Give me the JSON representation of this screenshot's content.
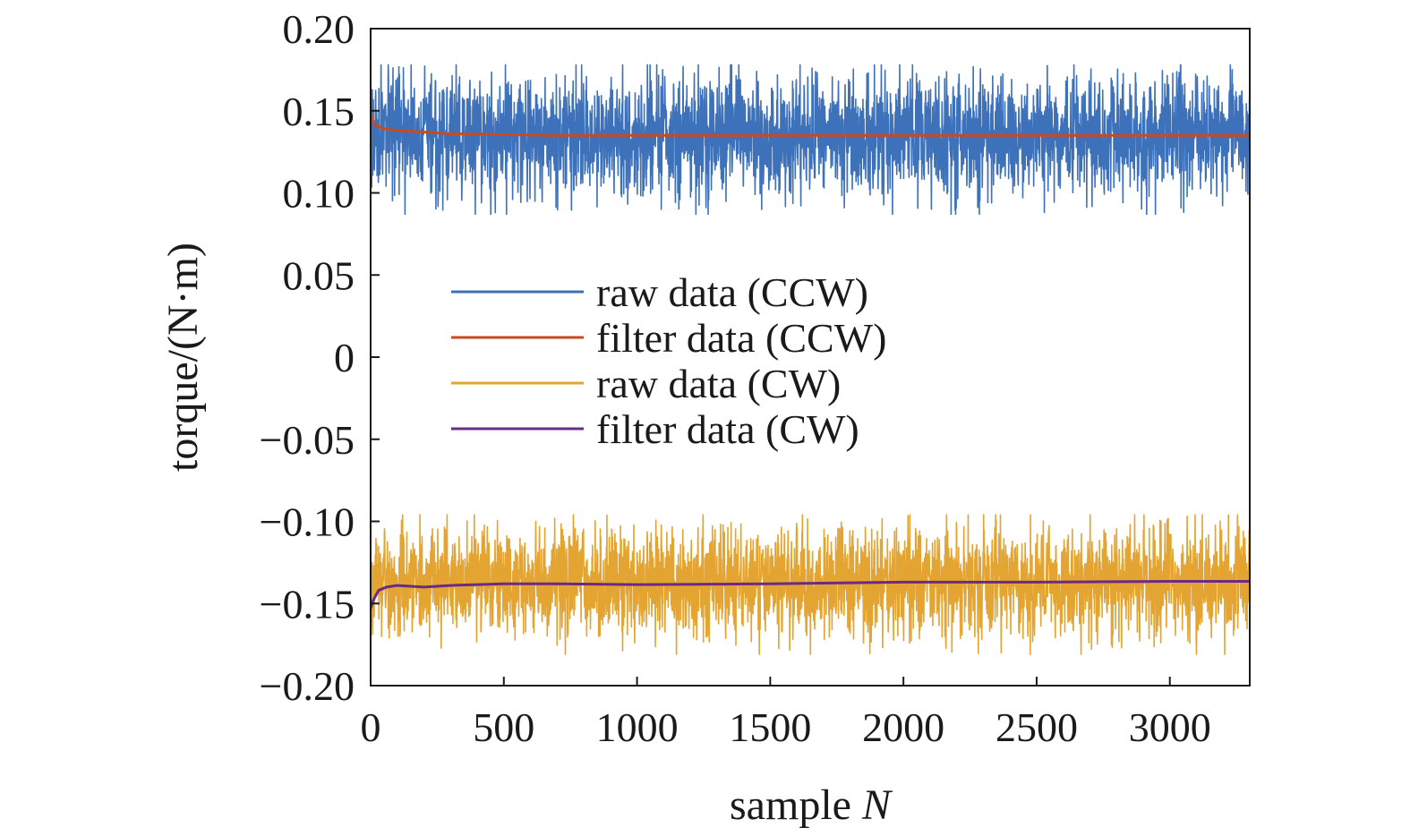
{
  "chart_data": {
    "type": "line",
    "xlabel": "sample",
    "xlabel_var": "N",
    "ylabel": "torque/(N·m)",
    "xlim": [
      0,
      3300
    ],
    "ylim": [
      -0.2,
      0.2
    ],
    "x_ticks": [
      "0",
      "500",
      "1000",
      "1500",
      "2000",
      "2500",
      "3000"
    ],
    "x_tick_values": [
      0,
      500,
      1000,
      1500,
      2000,
      2500,
      3000
    ],
    "y_ticks": [
      "0.20",
      "0.15",
      "0.10",
      "0.05",
      "0",
      "−0.05",
      "−0.10",
      "−0.15",
      "−0.20"
    ],
    "y_tick_values": [
      0.2,
      0.15,
      0.1,
      0.05,
      0,
      -0.05,
      -0.1,
      -0.15,
      -0.2
    ],
    "grid": false,
    "legend_position": "center-left",
    "series": [
      {
        "name": "raw data (CCW)",
        "color": "#3d71ba",
        "kind": "noisy",
        "n_samples": 3300,
        "mean": 0.135,
        "min": 0.087,
        "max": 0.178
      },
      {
        "name": "filter data (CCW)",
        "color": "#c84b1f",
        "kind": "smooth",
        "x": [
          0,
          10,
          20,
          50,
          100,
          200,
          300,
          500,
          700,
          1000,
          1500,
          2000,
          2500,
          3000,
          3300
        ],
        "y": [
          0.15,
          0.143,
          0.141,
          0.139,
          0.138,
          0.137,
          0.136,
          0.1355,
          0.135,
          0.135,
          0.135,
          0.135,
          0.135,
          0.135,
          0.135
        ]
      },
      {
        "name": "raw data (CW)",
        "color": "#e3a431",
        "kind": "noisy",
        "n_samples": 3300,
        "mean": -0.137,
        "min": -0.181,
        "max": -0.096
      },
      {
        "name": "filter data (CW)",
        "color": "#6a2a86",
        "kind": "smooth",
        "x": [
          0,
          10,
          30,
          60,
          100,
          200,
          300,
          500,
          700,
          1000,
          1500,
          2000,
          2500,
          3000,
          3300
        ],
        "y": [
          -0.153,
          -0.148,
          -0.142,
          -0.14,
          -0.139,
          -0.14,
          -0.139,
          -0.138,
          -0.138,
          -0.1385,
          -0.138,
          -0.137,
          -0.137,
          -0.1365,
          -0.1365
        ]
      }
    ]
  }
}
